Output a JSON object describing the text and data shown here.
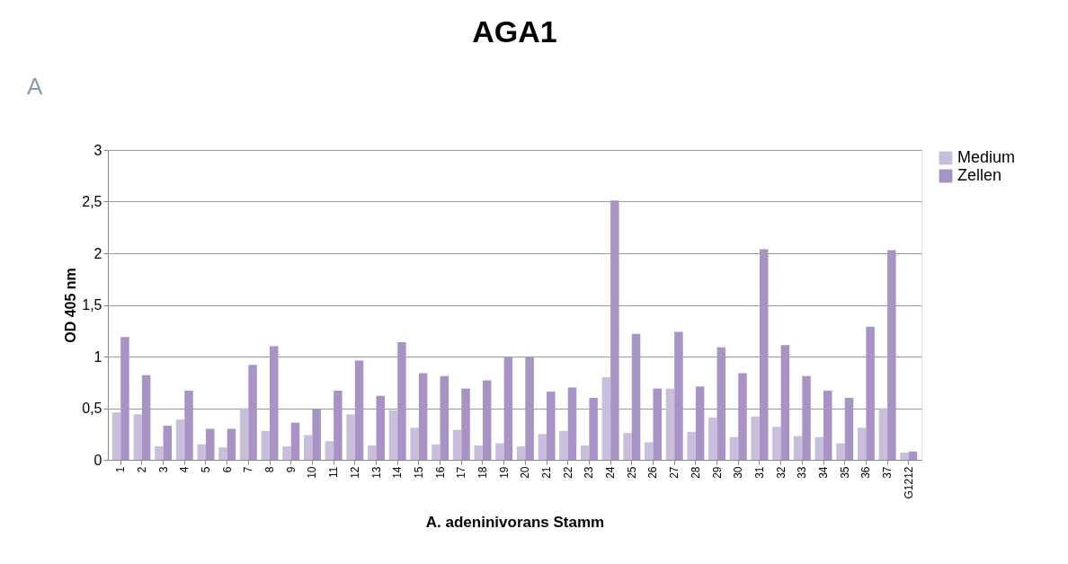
{
  "chart_data": {
    "type": "bar",
    "title": "AGA1",
    "xlabel": "A. adeninivorans Stamm",
    "ylabel": "OD 405 nm",
    "annotations": [
      "A"
    ],
    "categories": [
      "1",
      "2",
      "3",
      "4",
      "5",
      "6",
      "7",
      "8",
      "9",
      "10",
      "11",
      "12",
      "13",
      "14",
      "15",
      "16",
      "17",
      "18",
      "19",
      "20",
      "21",
      "22",
      "23",
      "24",
      "25",
      "26",
      "27",
      "28",
      "29",
      "30",
      "31",
      "32",
      "33",
      "34",
      "35",
      "36",
      "37",
      "G1212"
    ],
    "series": [
      {
        "name": "Medium",
        "color": "#c9bfdd",
        "values": [
          0.46,
          0.44,
          0.13,
          0.39,
          0.15,
          0.12,
          0.5,
          0.28,
          0.13,
          0.24,
          0.18,
          0.44,
          0.14,
          0.48,
          0.31,
          0.15,
          0.29,
          0.14,
          0.16,
          0.13,
          0.25,
          0.28,
          0.14,
          0.8,
          0.26,
          0.17,
          0.69,
          0.27,
          0.41,
          0.22,
          0.42,
          0.32,
          0.23,
          0.22,
          0.16,
          0.31,
          0.5,
          0.07
        ]
      },
      {
        "name": "Zellen",
        "color": "#a793c4",
        "values": [
          1.19,
          0.82,
          0.33,
          0.67,
          0.3,
          0.3,
          0.92,
          1.1,
          0.36,
          0.49,
          0.67,
          0.96,
          0.62,
          1.14,
          0.84,
          0.81,
          0.69,
          0.77,
          1.0,
          1.0,
          0.66,
          0.7,
          0.6,
          2.51,
          1.22,
          0.69,
          1.24,
          0.71,
          1.09,
          0.84,
          2.04,
          1.11,
          0.81,
          0.67,
          0.6,
          1.29,
          2.03,
          0.08
        ]
      }
    ],
    "ylim": [
      0,
      3
    ],
    "yticks": [
      0,
      {
        "value": 0.5,
        "label": "0,5"
      },
      1,
      {
        "value": 1.5,
        "label": "1,5"
      },
      2,
      {
        "value": 2.5,
        "label": "2,5"
      },
      3
    ],
    "grid": "y",
    "legend": "right"
  }
}
